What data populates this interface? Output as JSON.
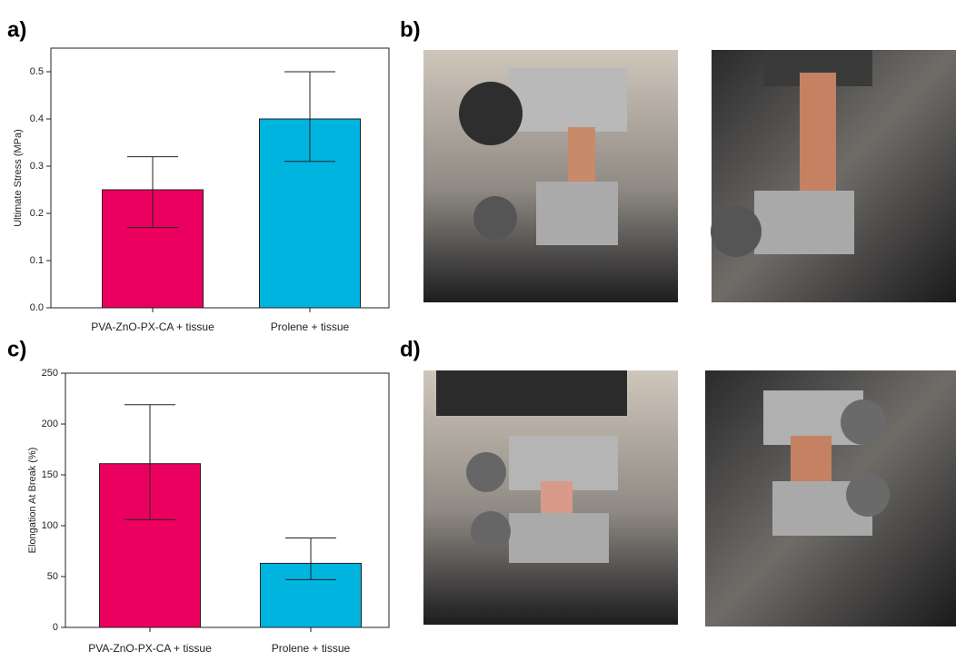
{
  "panel_labels": [
    "a)",
    "b)",
    "c)",
    "d)"
  ],
  "chart_data": [
    {
      "type": "bar",
      "y_label": "Ultimate Stress (MPa)",
      "categories": [
        "PVA-ZnO-PX-CA + tissue",
        "Prolene + tissue"
      ],
      "values": [
        0.25,
        0.4
      ],
      "errors_minus": [
        0.08,
        0.09
      ],
      "errors_plus": [
        0.07,
        0.1
      ],
      "colors": [
        "#ec005f",
        "#00b4e0"
      ],
      "ylim": [
        0,
        0.55
      ],
      "yticks": [
        {
          "value": 0,
          "label": "0.0"
        },
        0.1,
        0.2,
        0.3,
        0.4,
        0.5
      ]
    },
    {
      "type": "bar",
      "y_label": "Elongation At Break (%)",
      "categories": [
        "PVA-ZnO-PX-CA + tissue",
        "Prolene + tissue"
      ],
      "values": [
        161,
        63
      ],
      "errors_minus": [
        55,
        16
      ],
      "errors_plus": [
        58,
        25
      ],
      "colors": [
        "#ec005f",
        "#00b4e0"
      ],
      "ylim": [
        0,
        250
      ],
      "yticks": [
        0,
        50,
        100,
        150,
        200,
        250
      ]
    }
  ]
}
